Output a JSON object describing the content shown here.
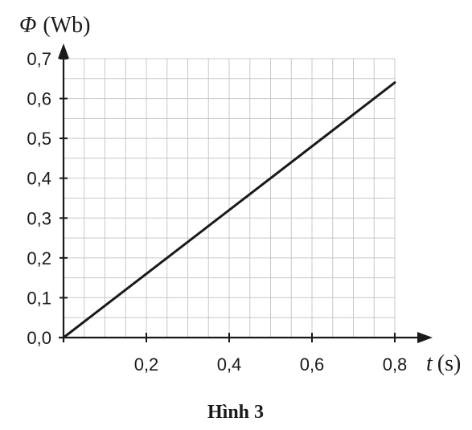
{
  "chart_data": {
    "type": "line",
    "ylabel_symbol": "Φ",
    "ylabel_unit": "(Wb)",
    "xlabel_symbol": "t",
    "xlabel_unit": "(s)",
    "x_ticks": [
      "0,2",
      "0,4",
      "0,6",
      "0,8"
    ],
    "x_tick_values": [
      0.2,
      0.4,
      0.6,
      0.8
    ],
    "y_ticks": [
      "0,0",
      "0,1",
      "0,2",
      "0,3",
      "0,4",
      "0,5",
      "0,6",
      "0,7"
    ],
    "y_tick_values": [
      0,
      0.1,
      0.2,
      0.3,
      0.4,
      0.5,
      0.6,
      0.7
    ],
    "xlim": [
      0,
      0.8
    ],
    "ylim": [
      0,
      0.7
    ],
    "grid": true,
    "minor_grid_step_x": 0.05,
    "minor_grid_step_y": 0.05,
    "series": [
      {
        "x": [
          0,
          0.8
        ],
        "y": [
          0,
          0.64
        ]
      }
    ],
    "line_color": "#1a1a1a",
    "grid_color": "#c8c8c8"
  },
  "caption": "Hình 3"
}
